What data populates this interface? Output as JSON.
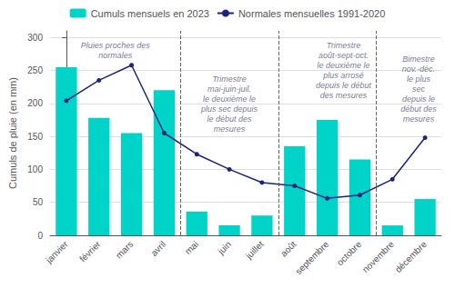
{
  "chart_data": {
    "type": "bar",
    "ylabel": "Cumuls de pluie (en mm)",
    "categories": [
      "janvier",
      "février",
      "mars",
      "avril",
      "mai",
      "juin",
      "juillet",
      "août",
      "septembre",
      "octobre",
      "novembre",
      "décembre"
    ],
    "series": [
      {
        "name": "Cumuls mensuels en 2023",
        "type": "bar",
        "color": "#00d4c8",
        "values": [
          255,
          178,
          155,
          220,
          36,
          15,
          30,
          135,
          175,
          115,
          15,
          55
        ]
      },
      {
        "name": "Normales mensuelles 1991-2020",
        "type": "line",
        "color": "#1a237e",
        "marker": "circle",
        "values": [
          204,
          235,
          258,
          155,
          123,
          100,
          80,
          75,
          56,
          61,
          85,
          148
        ]
      }
    ],
    "ylim": [
      0,
      310
    ],
    "yticks": [
      0,
      50,
      100,
      150,
      200,
      250,
      300
    ],
    "grid": true,
    "legend": "top",
    "annotations": [
      {
        "text": "Pluies proches des\nnormales",
        "x": 1.5,
        "y": 295,
        "color": "#555577"
      },
      {
        "text": "Trimestre\nmai-juin-juil.\nle deuxième le\nplus sec depuis\nle début des\nmesures",
        "x": 5.0,
        "y": 245,
        "color": "#555577"
      },
      {
        "text": "Trimestre\naoût-sept-oct.\nle deuxième le\nplus arrosé\ndepuis le début\ndes mesures",
        "x": 8.5,
        "y": 295,
        "color": "#555577"
      },
      {
        "text": "Bimestre\nnov.-déc.\nle plus\nsec\ndepuis le\ndébut des\nmesures",
        "x": 10.8,
        "y": 275,
        "color": "#555577"
      }
    ],
    "vlines": {
      "values": [
        3.5,
        6.5,
        9.5
      ],
      "color": "#666666",
      "line_style": "dashed"
    }
  }
}
